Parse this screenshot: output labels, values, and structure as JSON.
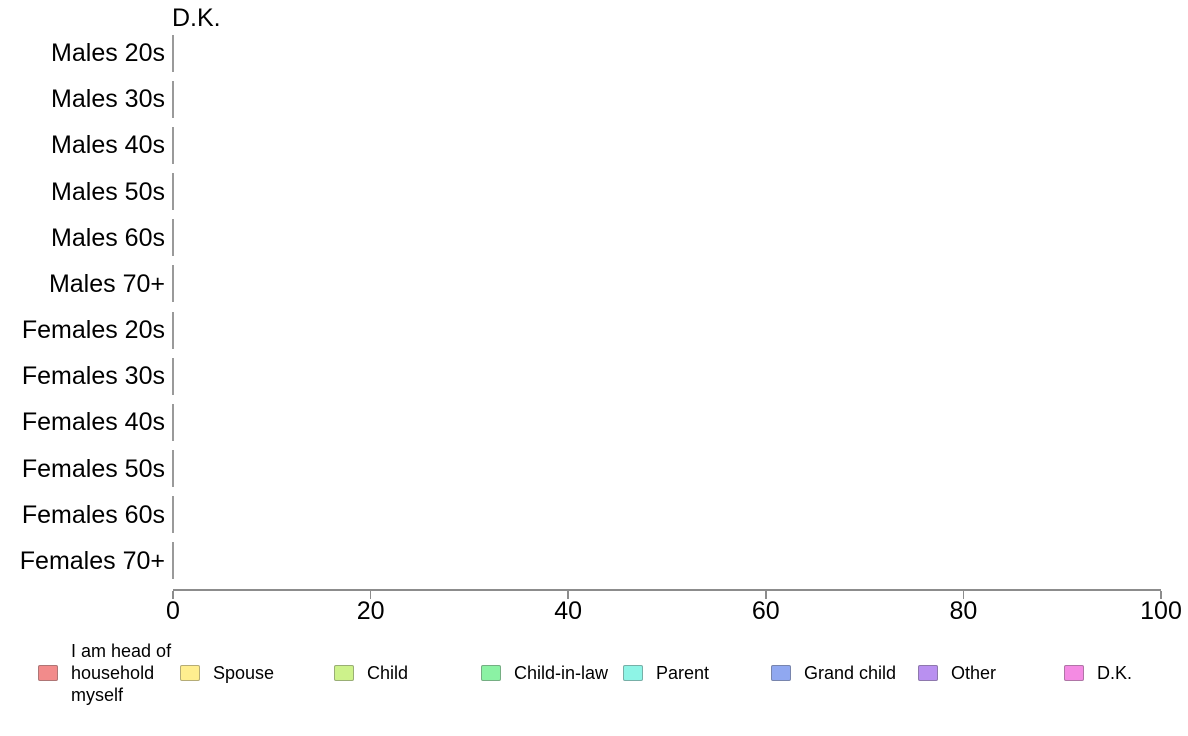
{
  "chart": {
    "annotation": "D.K.",
    "categories": [
      "Males 20s",
      "Males 30s",
      "Males 40s",
      "Males 50s",
      "Males 60s",
      "Males 70+",
      "Females 20s",
      "Females 30s",
      "Females 40s",
      "Females 50s",
      "Females 60s",
      "Females 70+"
    ],
    "x_ticks": [
      "0",
      "20",
      "40",
      "60",
      "80",
      "100"
    ],
    "legend": [
      {
        "label": "I am head of household myself",
        "text": "I am head of\nhousehold\nmyself",
        "color": "#F28B8B"
      },
      {
        "label": "Spouse",
        "text": "Spouse",
        "color": "#FFEE8F"
      },
      {
        "label": "Child",
        "text": "Child",
        "color": "#CDF28B"
      },
      {
        "label": "Child-in-law",
        "text": "Child-in-law",
        "color": "#8BF2A4"
      },
      {
        "label": "Parent",
        "text": "Parent",
        "color": "#8EF4E6"
      },
      {
        "label": "Grand child",
        "text": "Grand child",
        "color": "#90A8F0"
      },
      {
        "label": "Other",
        "text": "Other",
        "color": "#B990F0"
      },
      {
        "label": "D.K.",
        "text": "D.K.",
        "color": "#F48BE3"
      }
    ]
  },
  "chart_data": {
    "type": "bar",
    "orientation": "horizontal",
    "stacked": true,
    "title": "",
    "xlabel": "",
    "ylabel": "",
    "annotation": "D.K.",
    "categories": [
      "Males 20s",
      "Males 30s",
      "Males 40s",
      "Males 50s",
      "Males 60s",
      "Males 70+",
      "Females 20s",
      "Females 30s",
      "Females 40s",
      "Females 50s",
      "Females 60s",
      "Females 70+"
    ],
    "series": [
      {
        "name": "I am head of household myself",
        "color": "#F28B8B",
        "values": [
          0,
          0,
          0,
          0,
          0,
          0,
          0,
          0,
          0,
          0,
          0,
          0
        ]
      },
      {
        "name": "Spouse",
        "color": "#FFEE8F",
        "values": [
          0,
          0,
          0,
          0,
          0,
          0,
          0,
          0,
          0,
          0,
          0,
          0
        ]
      },
      {
        "name": "Child",
        "color": "#CDF28B",
        "values": [
          0,
          0,
          0,
          0,
          0,
          0,
          0,
          0,
          0,
          0,
          0,
          0
        ]
      },
      {
        "name": "Child-in-law",
        "color": "#8BF2A4",
        "values": [
          0,
          0,
          0,
          0,
          0,
          0,
          0,
          0,
          0,
          0,
          0,
          0
        ]
      },
      {
        "name": "Parent",
        "color": "#8EF4E6",
        "values": [
          0,
          0,
          0,
          0,
          0,
          0,
          0,
          0,
          0,
          0,
          0,
          0
        ]
      },
      {
        "name": "Grand child",
        "color": "#90A8F0",
        "values": [
          0,
          0,
          0,
          0,
          0,
          0,
          0,
          0,
          0,
          0,
          0,
          0
        ]
      },
      {
        "name": "Other",
        "color": "#B990F0",
        "values": [
          0,
          0,
          0,
          0,
          0,
          0,
          0,
          0,
          0,
          0,
          0,
          0
        ]
      },
      {
        "name": "D.K.",
        "color": "#F48BE3",
        "values": [
          0,
          0,
          0,
          0,
          0,
          0,
          0,
          0,
          0,
          0,
          0,
          0
        ]
      }
    ],
    "xlim": [
      0,
      100
    ],
    "xticks": [
      0,
      20,
      40,
      60,
      80,
      100
    ],
    "grid": false,
    "legend_position": "bottom"
  }
}
